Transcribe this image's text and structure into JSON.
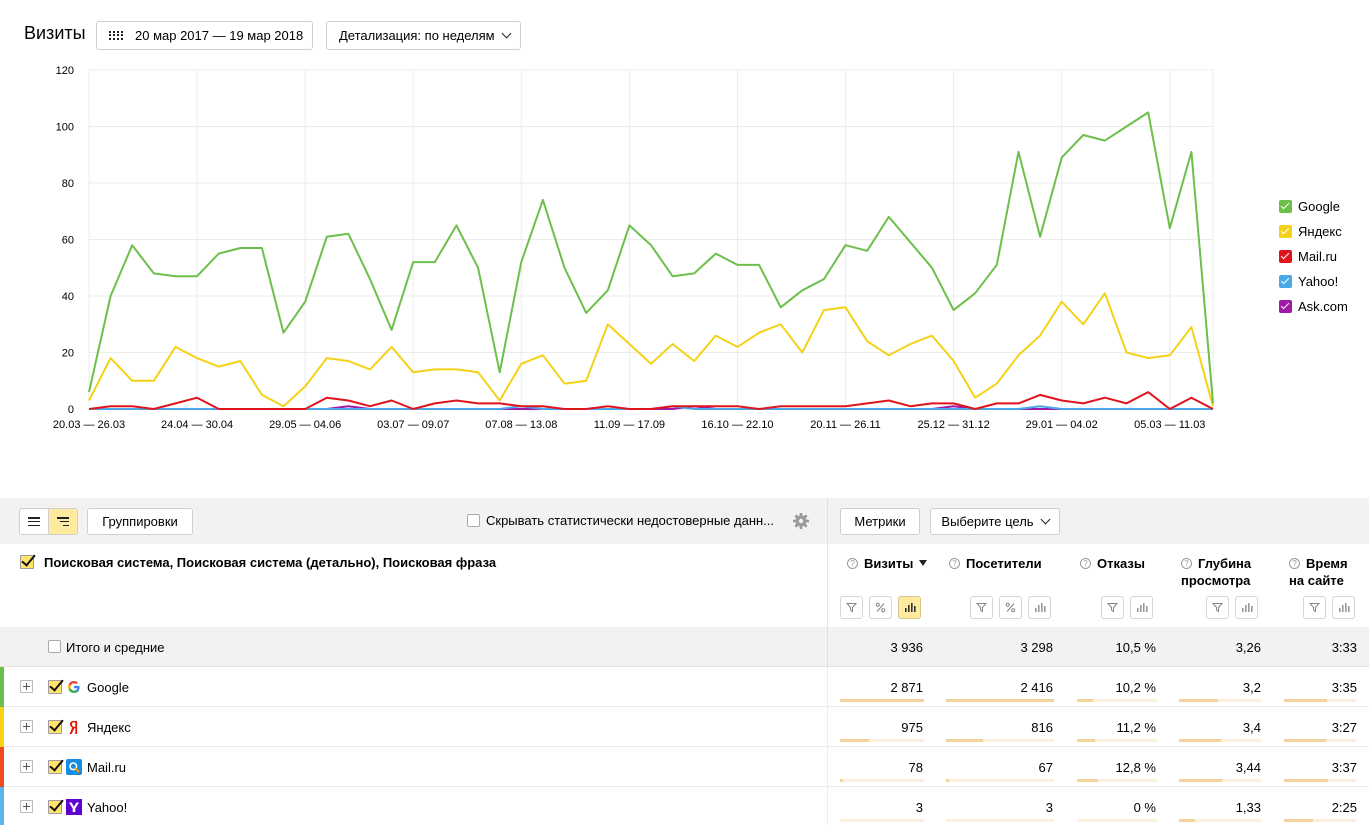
{
  "header": {
    "title": "Визиты",
    "date_range": "20 мар 2017 — 19 мар 2018",
    "detail_label": "Детализация: по неделям"
  },
  "chart_data": {
    "type": "line",
    "ylim": [
      0,
      120
    ],
    "yticks": [
      0,
      20,
      40,
      60,
      80,
      100,
      120
    ],
    "x_labels": [
      "20.03 — 26.03",
      "24.04 — 30.04",
      "29.05 — 04.06",
      "03.07 — 09.07",
      "07.08 — 13.08",
      "11.09 — 17.09",
      "16.10 — 22.10",
      "20.11 — 26.11",
      "25.12 — 31.12",
      "29.01 — 04.02",
      "05.03 — 11.03"
    ],
    "label_week_index": [
      0,
      5,
      10,
      15,
      20,
      25,
      30,
      35,
      40,
      45,
      50
    ],
    "num_points": 53,
    "series": [
      {
        "name": "Google",
        "color": "#6cc04a",
        "values": [
          6,
          40,
          58,
          48,
          47,
          47,
          55,
          57,
          57,
          27,
          38,
          61,
          62,
          46,
          28,
          52,
          52,
          65,
          50,
          13,
          52,
          74,
          50,
          34,
          42,
          65,
          58,
          47,
          48,
          55,
          51,
          51,
          36,
          42,
          46,
          58,
          56,
          68,
          59,
          50,
          35,
          41,
          51,
          91,
          61,
          89,
          97,
          95,
          100,
          105,
          64,
          91,
          2
        ]
      },
      {
        "name": "Яндекс",
        "color": "#f5d117",
        "values": [
          3,
          18,
          10,
          10,
          22,
          18,
          15,
          17,
          5,
          1,
          8,
          18,
          17,
          14,
          22,
          13,
          14,
          14,
          13,
          3,
          16,
          19,
          9,
          10,
          30,
          23,
          16,
          23,
          17,
          26,
          22,
          27,
          30,
          20,
          35,
          36,
          24,
          19,
          23,
          26,
          17,
          4,
          9,
          19,
          26,
          38,
          30,
          41,
          20,
          18,
          19,
          29,
          1
        ]
      },
      {
        "name": "Mail.ru",
        "color": "#e0141c",
        "values": [
          0,
          1,
          1,
          0,
          2,
          4,
          0,
          0,
          0,
          0,
          0,
          4,
          3,
          1,
          3,
          0,
          2,
          3,
          2,
          2,
          1,
          1,
          0,
          0,
          1,
          0,
          0,
          1,
          1,
          1,
          1,
          0,
          1,
          1,
          1,
          1,
          2,
          3,
          1,
          2,
          2,
          0,
          2,
          2,
          5,
          3,
          2,
          4,
          2,
          6,
          0,
          4,
          0
        ]
      },
      {
        "name": "Yahoo!",
        "color": "#4aa8e8",
        "values": [
          0,
          0,
          0,
          0,
          0,
          0,
          0,
          0,
          0,
          0,
          0,
          0,
          0,
          0,
          0,
          0,
          0,
          0,
          0,
          0,
          1,
          0,
          0,
          0,
          0,
          0,
          0,
          1,
          0,
          0,
          0,
          0,
          0,
          0,
          0,
          0,
          0,
          0,
          0,
          0,
          0,
          0,
          0,
          0,
          1,
          0,
          0,
          0,
          0,
          0,
          0,
          0,
          0
        ]
      },
      {
        "name": "Ask.com",
        "color": "#a01aa8",
        "values": [
          0,
          0,
          0,
          0,
          0,
          0,
          0,
          0,
          0,
          0,
          0,
          0,
          1,
          0,
          0,
          0,
          0,
          0,
          0,
          0,
          0,
          0,
          0,
          0,
          0,
          0,
          0,
          0,
          1,
          0,
          0,
          0,
          0,
          0,
          0,
          0,
          0,
          0,
          0,
          0,
          1,
          0,
          0,
          0,
          0,
          0,
          0,
          0,
          0,
          0,
          0,
          0,
          0
        ]
      }
    ],
    "legend_position": "right"
  },
  "toolbar": {
    "groupings_label": "Группировки",
    "hide_unreliable_label": "Скрывать статистически недостоверные данн...",
    "metrics_label": "Метрики",
    "goal_label": "Выберите цель"
  },
  "table": {
    "dimension_title": "Поисковая система, Поисковая система (детально), Поисковая фраза",
    "columns": [
      {
        "key": "visits",
        "label": "Визиты"
      },
      {
        "key": "visitors",
        "label": "Посетители"
      },
      {
        "key": "bounces",
        "label": "Отказы"
      },
      {
        "key": "depth",
        "label": "Глубина просмотра",
        "line1": "Глубина",
        "line2": "просмотра"
      },
      {
        "key": "time",
        "label": "Время на сайте",
        "line1": "Время",
        "line2": "на сайте"
      }
    ],
    "total": {
      "label": "Итого и средние",
      "visits": "3 936",
      "visitors": "3 298",
      "bounces": "10,5 %",
      "depth": "3,26",
      "time": "3:33"
    },
    "rows": [
      {
        "label": "Google",
        "icon": "google-icon",
        "color": "#6cc04a",
        "visits": "2 871",
        "visitors": "2 416",
        "bounces": "10,2 %",
        "depth": "3,2",
        "time": "3:35",
        "bars": {
          "visits": 1.0,
          "visitors": 1.0,
          "bounces": 0.2,
          "depth": 0.48,
          "time": 0.6
        }
      },
      {
        "label": "Яндекс",
        "icon": "yandex-icon",
        "color": "#f5d117",
        "visits": "975",
        "visitors": "816",
        "bounces": "11,2 %",
        "depth": "3,4",
        "time": "3:27",
        "bars": {
          "visits": 0.34,
          "visitors": 0.34,
          "bounces": 0.22,
          "depth": 0.51,
          "time": 0.58
        }
      },
      {
        "label": "Mail.ru",
        "icon": "mailru-icon",
        "color": "#f04a23",
        "visits": "78",
        "visitors": "67",
        "bounces": "12,8 %",
        "depth": "3,44",
        "time": "3:37",
        "bars": {
          "visits": 0.03,
          "visitors": 0.03,
          "bounces": 0.26,
          "depth": 0.52,
          "time": 0.61
        }
      },
      {
        "label": "Yahoo!",
        "icon": "yahoo-icon",
        "color": "#5cb4ee",
        "visits": "3",
        "visitors": "3",
        "bounces": "0 %",
        "depth": "1,33",
        "time": "2:25",
        "bars": {
          "visits": 0.0,
          "visitors": 0.0,
          "bounces": 0.0,
          "depth": 0.2,
          "time": 0.4
        }
      }
    ]
  }
}
